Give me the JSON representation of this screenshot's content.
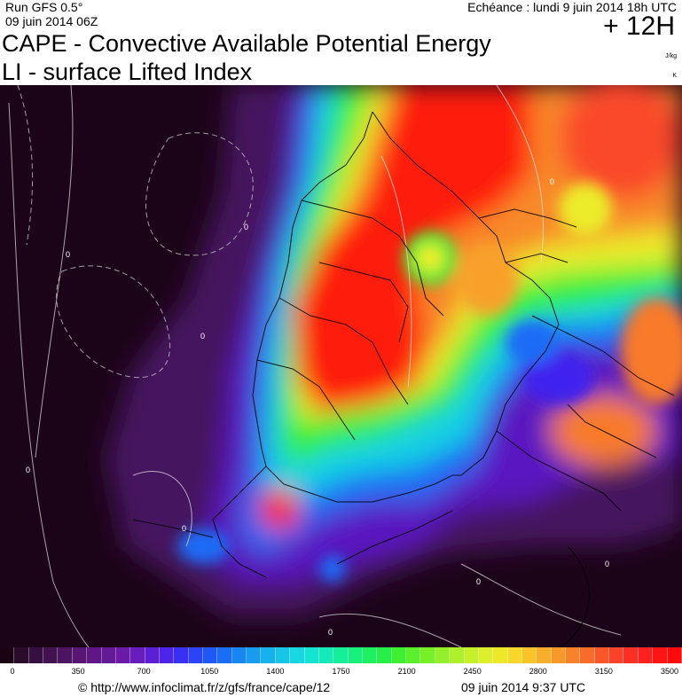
{
  "header": {
    "run_title": "Run GFS 0.5°",
    "run_date": "09 juin 2014 06Z",
    "echeance": "Echéance : lundi 9 juin 2014 18h UTC",
    "lead_time": "+ 12H",
    "title_line1": "CAPE - Convective Available Potential Energy",
    "title_line2": "LI - surface Lifted Index",
    "unit_cape": "J/kg",
    "unit_li": "K"
  },
  "map": {
    "contour_labels": [
      "0",
      "0",
      "0",
      "0",
      "0",
      "0",
      "0",
      "0",
      "0"
    ],
    "palette": [
      "#170014",
      "#2a0a2e",
      "#3a0f49",
      "#4b1066",
      "#5a148a",
      "#6716a8",
      "#5b1ad0",
      "#3f24ee",
      "#2a4cf6",
      "#1f78f4",
      "#1aa6ef",
      "#19d0e8",
      "#19e8c8",
      "#1aee8a",
      "#22f04a",
      "#5cf028",
      "#a6f02a",
      "#d8f02a",
      "#f5e42a",
      "#f7b42a",
      "#f8802a",
      "#f9502a",
      "#fb2a24",
      "#ff1010"
    ]
  },
  "colorbar": {
    "colors": [
      "#1a0414",
      "#2a0b2c",
      "#360f42",
      "#41124f",
      "#4c1463",
      "#561672",
      "#5e1785",
      "#641996",
      "#6a1aa6",
      "#681cbe",
      "#5d1fd6",
      "#4c24ea",
      "#3a30f4",
      "#2b44f6",
      "#2058f5",
      "#1a6ef3",
      "#1886f1",
      "#179cee",
      "#17b2eb",
      "#17c6e7",
      "#17d8e2",
      "#16e4d2",
      "#16eab8",
      "#16ee9c",
      "#18f07e",
      "#1df062",
      "#26f048",
      "#3ef032",
      "#5af02a",
      "#78f028",
      "#94f02a",
      "#aef02a",
      "#c6f02a",
      "#dcef2a",
      "#eee82a",
      "#f7d82a",
      "#f8c42a",
      "#f8ae2a",
      "#f8982a",
      "#f8822a",
      "#f86c2a",
      "#f9562a",
      "#fa4228",
      "#fb3024",
      "#fc2020",
      "#fd1414",
      "#ff0a0a"
    ],
    "tick_labels": [
      "0",
      "350",
      "700",
      "1050",
      "1400",
      "1750",
      "2100",
      "2450",
      "2800",
      "3150",
      "3500"
    ]
  },
  "footer": {
    "url": "© http://www.infoclimat.fr/z/gfs/france/cape/12",
    "timestamp": "09 juin 2014  9:37 UTC"
  }
}
